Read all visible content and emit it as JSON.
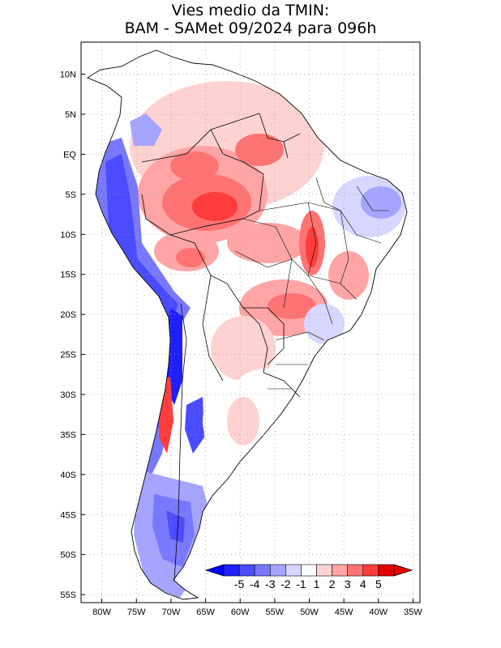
{
  "title": {
    "line1": "Vies medio da TMIN:",
    "line2": "BAM - SAMet 09/2024  para 096h"
  },
  "map": {
    "lon_range": [
      -83,
      -34
    ],
    "lat_range": [
      -56,
      14
    ],
    "lat_labels": [
      {
        "lat": 10,
        "label": "10N"
      },
      {
        "lat": 5,
        "label": "5N"
      },
      {
        "lat": 0,
        "label": "EQ"
      },
      {
        "lat": -5,
        "label": "5S"
      },
      {
        "lat": -10,
        "label": "10S"
      },
      {
        "lat": -15,
        "label": "15S"
      },
      {
        "lat": -20,
        "label": "20S"
      },
      {
        "lat": -25,
        "label": "25S"
      },
      {
        "lat": -30,
        "label": "30S"
      },
      {
        "lat": -35,
        "label": "35S"
      },
      {
        "lat": -40,
        "label": "40S"
      },
      {
        "lat": -45,
        "label": "45S"
      },
      {
        "lat": -50,
        "label": "50S"
      },
      {
        "lat": -55,
        "label": "55S"
      }
    ],
    "lon_labels": [
      {
        "lon": -80,
        "label": "80W"
      },
      {
        "lon": -75,
        "label": "75W"
      },
      {
        "lon": -70,
        "label": "70W"
      },
      {
        "lon": -65,
        "label": "65W"
      },
      {
        "lon": -60,
        "label": "60W"
      },
      {
        "lon": -55,
        "label": "55W"
      },
      {
        "lon": -50,
        "label": "50W"
      },
      {
        "lon": -45,
        "label": "45W"
      },
      {
        "lon": -40,
        "label": "40W"
      },
      {
        "lon": -35,
        "label": "35W"
      }
    ]
  },
  "colorbar": {
    "labels": [
      "-5",
      "-4",
      "-3",
      "-2",
      "-1",
      "1",
      "2",
      "3",
      "4",
      "5"
    ],
    "colors": [
      "#1e1eff",
      "#4b4bff",
      "#7878ff",
      "#a5a5ff",
      "#d7d7ff",
      "#ffffff",
      "#ffd2d2",
      "#ffa5a5",
      "#ff7373",
      "#ff3c3c",
      "#e60000"
    ],
    "end_colors": {
      "low": "#0000ff",
      "high": "#e60000"
    }
  },
  "legend_colors": {
    "frame": "#000000",
    "grid": "#a0a0a0"
  }
}
